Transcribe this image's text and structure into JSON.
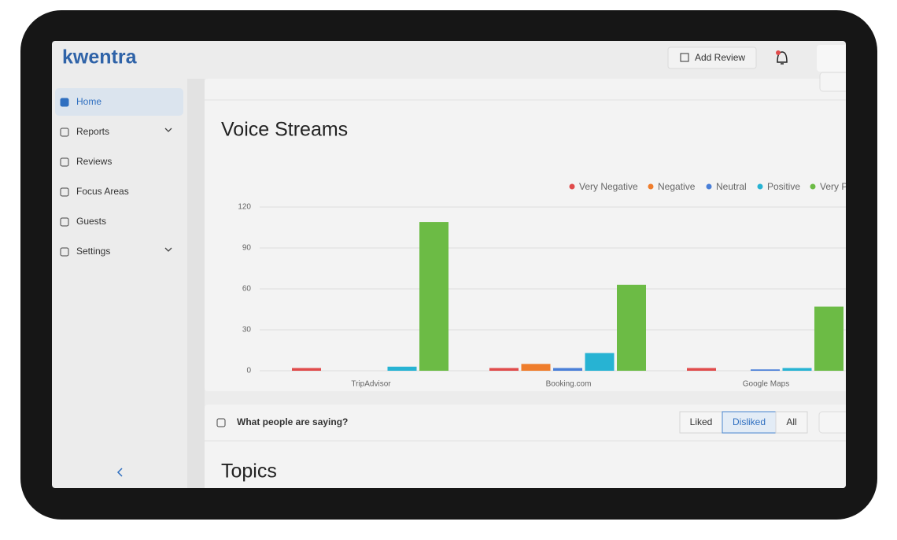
{
  "brand": "kwentra",
  "header": {
    "add_review": "Add Review"
  },
  "sidebar": {
    "items": [
      "Home",
      "Reports",
      "Reviews",
      "Focus Areas",
      "Guests",
      "Settings"
    ],
    "active": 0
  },
  "chart_data": {
    "type": "bar",
    "title": "Voice Streams",
    "categories": [
      "TripAdvisor",
      "Booking.com",
      "Google Maps"
    ],
    "series": [
      {
        "name": "Very Negative",
        "color": "#e04b4b",
        "values": [
          2,
          2,
          2
        ]
      },
      {
        "name": "Negative",
        "color": "#ef7d2c",
        "values": [
          0,
          5,
          0
        ]
      },
      {
        "name": "Neutral",
        "color": "#4a7fd8",
        "values": [
          0,
          2,
          1
        ]
      },
      {
        "name": "Positive",
        "color": "#27b3d3",
        "values": [
          3,
          13,
          2
        ]
      },
      {
        "name": "Very Positive",
        "color": "#6cbb45",
        "values": [
          109,
          63,
          47
        ]
      }
    ],
    "ylim": [
      0,
      120
    ],
    "yticks": [
      0,
      30,
      60,
      90,
      120
    ],
    "grid": true
  },
  "feedback": {
    "title": "What people are saying?",
    "filters": [
      "Liked",
      "Disliked",
      "All"
    ],
    "selected_filter": 1
  },
  "topics": {
    "title": "Topics"
  }
}
